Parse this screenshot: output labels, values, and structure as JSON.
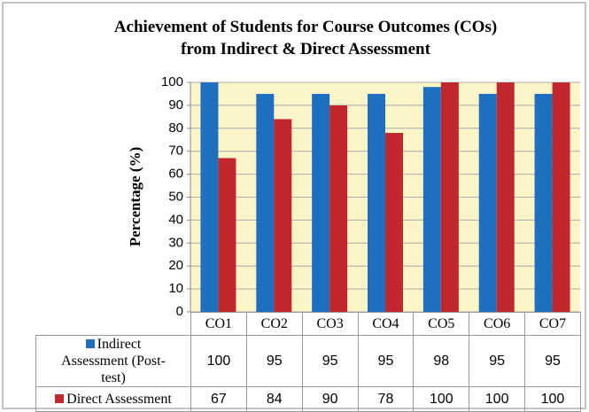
{
  "chart_data": {
    "type": "bar",
    "title": [
      "Achievement of Students for Course Outcomes (COs)",
      "from Indirect & Direct Assessment"
    ],
    "y_label": "Percentage (%)",
    "categories": [
      "CO1",
      "CO2",
      "CO3",
      "CO4",
      "CO5",
      "CO6",
      "CO7"
    ],
    "series": [
      {
        "name": "Indirect Assessment (Post-test)",
        "color": "#1f6fc0",
        "values": [
          100,
          95,
          95,
          95,
          98,
          95,
          95
        ]
      },
      {
        "name": "Direct Assessment",
        "color": "#c0282d",
        "values": [
          67,
          84,
          90,
          78,
          100,
          100,
          100
        ]
      }
    ],
    "ylim": [
      0,
      100
    ],
    "yticks": [
      0,
      10,
      20,
      30,
      40,
      50,
      60,
      70,
      80,
      90,
      100
    ],
    "grid": true
  }
}
